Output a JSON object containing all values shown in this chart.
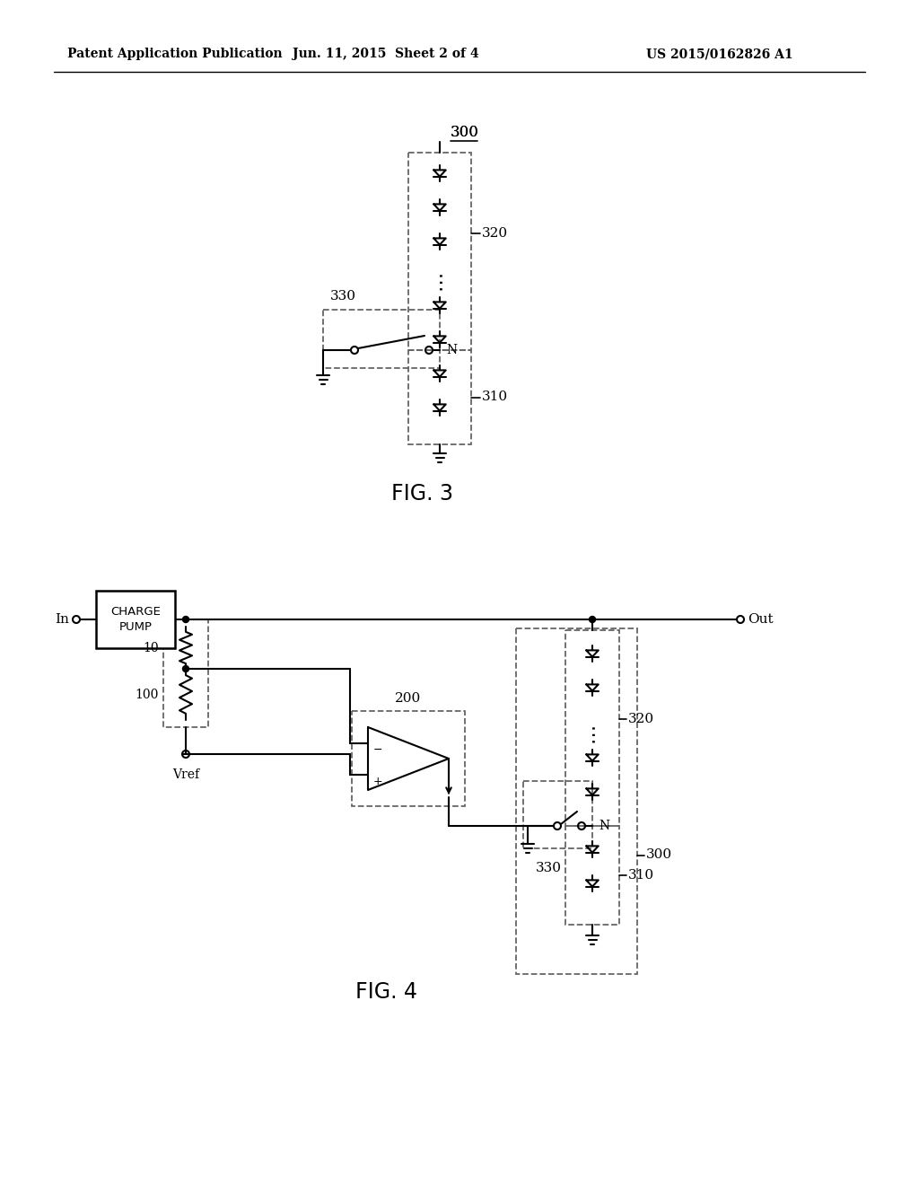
{
  "bg_color": "#ffffff",
  "line_color": "#000000",
  "dashed_color": "#666666",
  "header_left": "Patent Application Publication",
  "header_mid": "Jun. 11, 2015  Sheet 2 of 4",
  "header_right": "US 2015/0162826 A1",
  "fig3_label": "FIG. 3",
  "fig4_label": "FIG. 4",
  "label_300_fig3": "300",
  "label_320_fig3": "320",
  "label_310_fig3": "310",
  "label_330_fig3": "330",
  "label_300_fig4": "300",
  "label_320_fig4": "320",
  "label_310_fig4": "310",
  "label_330_fig4": "330",
  "label_200": "200",
  "label_100": "100",
  "label_10": "10",
  "label_In": "In",
  "label_Out": "Out",
  "label_Vref": "Vref",
  "label_charge_pump": "CHARGE\nPUMP",
  "label_N_fig3": "N",
  "label_N_fig4": "N"
}
